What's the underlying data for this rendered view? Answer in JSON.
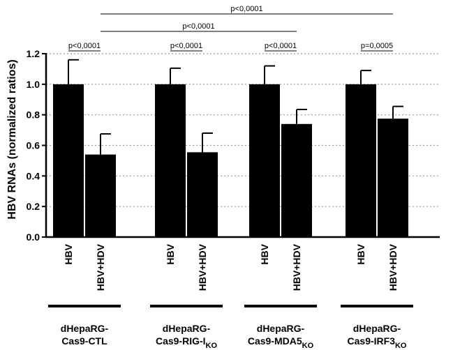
{
  "chart_data": {
    "type": "bar",
    "ylabel": "HBV RNAs (normalized ratios)",
    "ylim": [
      0,
      1.2
    ],
    "yticks": [
      "0.0",
      "0.2",
      "0.4",
      "0.6",
      "0.8",
      "1.0",
      "1.2"
    ],
    "grid": "horizontal dotted",
    "bar_color": "#000000",
    "groups": [
      {
        "line1": "dHepaRG-",
        "line2": "Cas9-CTL",
        "sub": "",
        "bars": [
          {
            "label": "HBV",
            "value": 1.0,
            "error": 0.16
          },
          {
            "label": "HBV+HDV",
            "value": 0.54,
            "error": 0.135
          }
        ]
      },
      {
        "line1": "dHepaRG-",
        "line2": "Cas9-RIG-I",
        "sub": "KO",
        "bars": [
          {
            "label": "HBV",
            "value": 1.0,
            "error": 0.105
          },
          {
            "label": "HBV+HDV",
            "value": 0.555,
            "error": 0.125
          }
        ]
      },
      {
        "line1": "dHepaRG-",
        "line2": "Cas9-MDA5",
        "sub": "KO",
        "bars": [
          {
            "label": "HBV",
            "value": 1.0,
            "error": 0.12
          },
          {
            "label": "HBV+HDV",
            "value": 0.74,
            "error": 0.095
          }
        ]
      },
      {
        "line1": "dHepaRG-",
        "line2": "Cas9-IRF3",
        "sub": "KO",
        "bars": [
          {
            "label": "HBV",
            "value": 1.0,
            "error": 0.09
          },
          {
            "label": "HBV+HDV",
            "value": 0.775,
            "error": 0.08
          }
        ]
      }
    ],
    "comparisons": [
      {
        "text": "p<0,0001",
        "from": [
          0,
          0
        ],
        "to": [
          0,
          1
        ]
      },
      {
        "text": "p<0,0001",
        "from": [
          1,
          0
        ],
        "to": [
          1,
          1
        ]
      },
      {
        "text": "p<0,0001",
        "from": [
          2,
          0
        ],
        "to": [
          2,
          1
        ]
      },
      {
        "text": "p=0,0005",
        "from": [
          3,
          0
        ],
        "to": [
          3,
          1
        ]
      },
      {
        "text": "p<0,0001",
        "from": [
          0,
          1
        ],
        "to": [
          2,
          1
        ]
      },
      {
        "text": "p<0,0001",
        "from": [
          0,
          1
        ],
        "to": [
          3,
          1
        ]
      }
    ]
  }
}
